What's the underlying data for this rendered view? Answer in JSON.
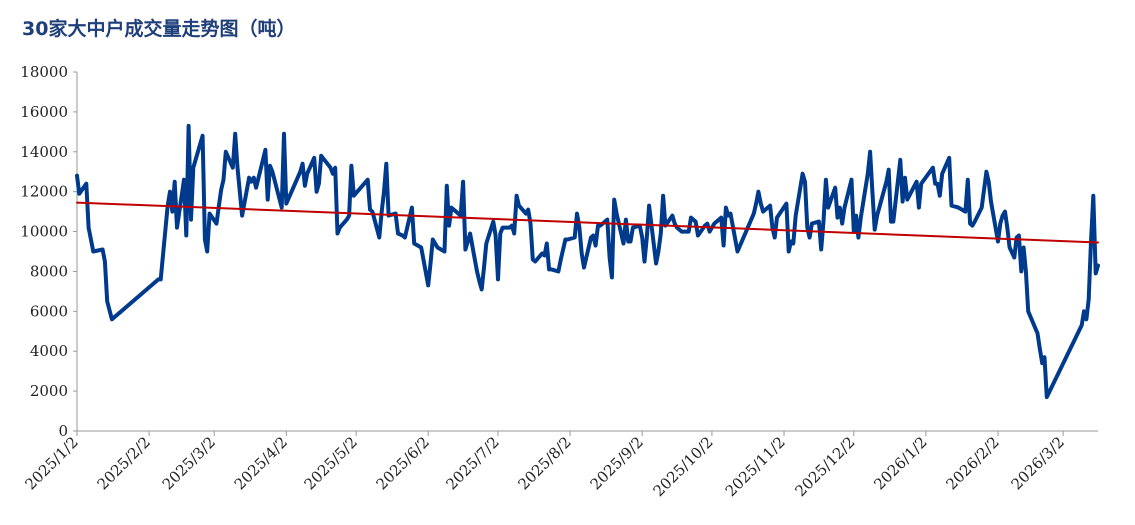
{
  "chart_data": {
    "type": "line",
    "title": "30家大中户成交量走势图（吨）",
    "xlabel": "",
    "ylabel": "",
    "ylim": [
      0,
      18000
    ],
    "yticks": [
      "0",
      "2000",
      "4000",
      "6000",
      "8000",
      "10000",
      "12000",
      "14000",
      "16000",
      "18000"
    ],
    "xticks": [
      "2025/1/2",
      "2025/2/2",
      "2025/3/2",
      "2025/4/2",
      "2025/5/2",
      "2025/6/2",
      "2025/7/2",
      "2025/8/2",
      "2025/9/2",
      "2025/10/2",
      "2025/11/2",
      "2025/12/2",
      "2026/1/2",
      "2026/2/2",
      "2026/3/2"
    ],
    "grid": false,
    "legend": "none",
    "series": [
      {
        "color": "#003a8c",
        "points": [
          [
            "2025-01-02",
            12800
          ],
          [
            "2025-01-03",
            11900
          ],
          [
            "2025-01-06",
            12400
          ],
          [
            "2025-01-07",
            10200
          ],
          [
            "2025-01-09",
            9000
          ],
          [
            "2025-01-13",
            9100
          ],
          [
            "2025-01-14",
            8500
          ],
          [
            "2025-01-15",
            6500
          ],
          [
            "2025-01-17",
            5600
          ],
          [
            "2025-02-06",
            7600
          ],
          [
            "2025-02-07",
            7600
          ],
          [
            "2025-02-10",
            11300
          ],
          [
            "2025-02-11",
            12000
          ],
          [
            "2025-02-12",
            11000
          ],
          [
            "2025-02-13",
            12500
          ],
          [
            "2025-02-14",
            10200
          ],
          [
            "2025-02-17",
            12600
          ],
          [
            "2025-02-18",
            9800
          ],
          [
            "2025-02-19",
            15300
          ],
          [
            "2025-02-20",
            10600
          ],
          [
            "2025-02-21",
            13200
          ],
          [
            "2025-02-25",
            14800
          ],
          [
            "2025-02-26",
            9600
          ],
          [
            "2025-02-27",
            9000
          ],
          [
            "2025-02-28",
            10900
          ],
          [
            "2025-03-03",
            10400
          ],
          [
            "2025-03-04",
            11300
          ],
          [
            "2025-03-05",
            12100
          ],
          [
            "2025-03-06",
            12600
          ],
          [
            "2025-03-07",
            14000
          ],
          [
            "2025-03-10",
            13200
          ],
          [
            "2025-03-11",
            14900
          ],
          [
            "2025-03-12",
            13200
          ],
          [
            "2025-03-14",
            10800
          ],
          [
            "2025-03-17",
            12700
          ],
          [
            "2025-03-18",
            12500
          ],
          [
            "2025-03-19",
            12700
          ],
          [
            "2025-03-20",
            12200
          ],
          [
            "2025-03-24",
            14100
          ],
          [
            "2025-03-25",
            11600
          ],
          [
            "2025-03-26",
            13300
          ],
          [
            "2025-03-27",
            13000
          ],
          [
            "2025-03-31",
            11200
          ],
          [
            "2025-04-01",
            14900
          ],
          [
            "2025-04-02",
            11400
          ],
          [
            "2025-04-08",
            13000
          ],
          [
            "2025-04-09",
            13400
          ],
          [
            "2025-04-10",
            12300
          ],
          [
            "2025-04-11",
            12900
          ],
          [
            "2025-04-14",
            13700
          ],
          [
            "2025-04-15",
            12000
          ],
          [
            "2025-04-16",
            12400
          ],
          [
            "2025-04-17",
            13800
          ],
          [
            "2025-04-21",
            13200
          ],
          [
            "2025-04-22",
            12900
          ],
          [
            "2025-04-23",
            13200
          ],
          [
            "2025-04-24",
            9900
          ],
          [
            "2025-04-25",
            10200
          ],
          [
            "2025-04-28",
            10600
          ],
          [
            "2025-04-29",
            10800
          ],
          [
            "2025-04-30",
            13300
          ],
          [
            "2025-05-01",
            11800
          ],
          [
            "2025-05-07",
            12600
          ],
          [
            "2025-05-08",
            11100
          ],
          [
            "2025-05-09",
            11000
          ],
          [
            "2025-05-12",
            9700
          ],
          [
            "2025-05-13",
            11000
          ],
          [
            "2025-05-14",
            12000
          ],
          [
            "2025-05-15",
            13400
          ],
          [
            "2025-05-16",
            10800
          ],
          [
            "2025-05-19",
            10900
          ],
          [
            "2025-05-20",
            9900
          ],
          [
            "2025-05-22",
            9800
          ],
          [
            "2025-05-23",
            9700
          ],
          [
            "2025-05-26",
            11200
          ],
          [
            "2025-05-27",
            9400
          ],
          [
            "2025-05-30",
            9200
          ],
          [
            "2025-06-02",
            7300
          ],
          [
            "2025-06-03",
            8400
          ],
          [
            "2025-06-04",
            9600
          ],
          [
            "2025-06-06",
            9200
          ],
          [
            "2025-06-09",
            9000
          ],
          [
            "2025-06-10",
            12300
          ],
          [
            "2025-06-11",
            10300
          ],
          [
            "2025-06-12",
            11200
          ],
          [
            "2025-06-16",
            10800
          ],
          [
            "2025-06-17",
            12500
          ],
          [
            "2025-06-18",
            9100
          ],
          [
            "2025-06-20",
            9900
          ],
          [
            "2025-06-23",
            8000
          ],
          [
            "2025-06-24",
            7500
          ],
          [
            "2025-06-25",
            7100
          ],
          [
            "2025-06-26",
            8200
          ],
          [
            "2025-06-27",
            9400
          ],
          [
            "2025-06-30",
            10500
          ],
          [
            "2025-07-01",
            9800
          ],
          [
            "2025-07-02",
            7600
          ],
          [
            "2025-07-03",
            9900
          ],
          [
            "2025-07-04",
            10200
          ],
          [
            "2025-07-07",
            10200
          ],
          [
            "2025-07-08",
            10300
          ],
          [
            "2025-07-09",
            9900
          ],
          [
            "2025-07-10",
            11800
          ],
          [
            "2025-07-11",
            11300
          ],
          [
            "2025-07-14",
            10900
          ],
          [
            "2025-07-15",
            11100
          ],
          [
            "2025-07-16",
            10400
          ],
          [
            "2025-07-17",
            8600
          ],
          [
            "2025-07-18",
            8500
          ],
          [
            "2025-07-21",
            8900
          ],
          [
            "2025-07-22",
            8800
          ],
          [
            "2025-07-23",
            9400
          ],
          [
            "2025-07-24",
            8100
          ],
          [
            "2025-07-25",
            8100
          ],
          [
            "2025-07-28",
            8000
          ],
          [
            "2025-07-29",
            8600
          ],
          [
            "2025-07-31",
            9600
          ],
          [
            "2025-08-01",
            9600
          ],
          [
            "2025-08-04",
            9700
          ],
          [
            "2025-08-05",
            10900
          ],
          [
            "2025-08-06",
            10200
          ],
          [
            "2025-08-07",
            8900
          ],
          [
            "2025-08-08",
            8200
          ],
          [
            "2025-08-11",
            9700
          ],
          [
            "2025-08-12",
            9800
          ],
          [
            "2025-08-13",
            9300
          ],
          [
            "2025-08-14",
            10300
          ],
          [
            "2025-08-15",
            10300
          ],
          [
            "2025-08-18",
            10600
          ],
          [
            "2025-08-19",
            8700
          ],
          [
            "2025-08-20",
            7700
          ],
          [
            "2025-08-21",
            11600
          ],
          [
            "2025-08-22",
            10900
          ],
          [
            "2025-08-25",
            9400
          ],
          [
            "2025-08-26",
            10600
          ],
          [
            "2025-08-27",
            9500
          ],
          [
            "2025-08-28",
            9500
          ],
          [
            "2025-08-29",
            10200
          ],
          [
            "2025-09-01",
            10300
          ],
          [
            "2025-09-02",
            9700
          ],
          [
            "2025-09-03",
            8500
          ],
          [
            "2025-09-04",
            9700
          ],
          [
            "2025-09-05",
            11300
          ],
          [
            "2025-09-08",
            8400
          ],
          [
            "2025-09-09",
            9000
          ],
          [
            "2025-09-10",
            9900
          ],
          [
            "2025-09-11",
            11800
          ],
          [
            "2025-09-12",
            10300
          ],
          [
            "2025-09-15",
            10800
          ],
          [
            "2025-09-16",
            10400
          ],
          [
            "2025-09-17",
            10200
          ],
          [
            "2025-09-18",
            10100
          ],
          [
            "2025-09-19",
            10000
          ],
          [
            "2025-09-22",
            10000
          ],
          [
            "2025-09-23",
            10700
          ],
          [
            "2025-09-25",
            10500
          ],
          [
            "2025-09-26",
            9800
          ],
          [
            "2025-09-29",
            10300
          ],
          [
            "2025-09-30",
            10400
          ],
          [
            "2025-10-01",
            10000
          ],
          [
            "2025-10-03",
            10400
          ],
          [
            "2025-10-06",
            10700
          ],
          [
            "2025-10-07",
            9300
          ],
          [
            "2025-10-08",
            11200
          ],
          [
            "2025-10-09",
            10800
          ],
          [
            "2025-10-10",
            10900
          ],
          [
            "2025-10-13",
            9000
          ],
          [
            "2025-10-20",
            10900
          ],
          [
            "2025-10-21",
            11400
          ],
          [
            "2025-10-22",
            12000
          ],
          [
            "2025-10-23",
            11400
          ],
          [
            "2025-10-24",
            11000
          ],
          [
            "2025-10-27",
            11300
          ],
          [
            "2025-10-28",
            10200
          ],
          [
            "2025-10-29",
            9700
          ],
          [
            "2025-10-30",
            10700
          ],
          [
            "2025-11-03",
            11400
          ],
          [
            "2025-11-04",
            9000
          ],
          [
            "2025-11-05",
            9500
          ],
          [
            "2025-11-06",
            9400
          ],
          [
            "2025-11-07",
            10800
          ],
          [
            "2025-11-10",
            12900
          ],
          [
            "2025-11-11",
            12500
          ],
          [
            "2025-11-12",
            10200
          ],
          [
            "2025-11-13",
            9700
          ],
          [
            "2025-11-14",
            10400
          ],
          [
            "2025-11-17",
            10500
          ],
          [
            "2025-11-18",
            9100
          ],
          [
            "2025-11-19",
            10600
          ],
          [
            "2025-11-20",
            12600
          ],
          [
            "2025-11-21",
            11200
          ],
          [
            "2025-11-24",
            12200
          ],
          [
            "2025-11-25",
            10700
          ],
          [
            "2025-11-26",
            11200
          ],
          [
            "2025-11-27",
            10400
          ],
          [
            "2025-11-28",
            11200
          ],
          [
            "2025-12-01",
            12600
          ],
          [
            "2025-12-02",
            10000
          ],
          [
            "2025-12-03",
            10800
          ],
          [
            "2025-12-04",
            9700
          ],
          [
            "2025-12-05",
            10700
          ],
          [
            "2025-12-08",
            12900
          ],
          [
            "2025-12-09",
            14000
          ],
          [
            "2025-12-10",
            12000
          ],
          [
            "2025-12-11",
            10100
          ],
          [
            "2025-12-12",
            10800
          ],
          [
            "2025-12-16",
            12500
          ],
          [
            "2025-12-17",
            13100
          ],
          [
            "2025-12-18",
            10500
          ],
          [
            "2025-12-19",
            10500
          ],
          [
            "2025-12-22",
            13600
          ],
          [
            "2025-12-23",
            11500
          ],
          [
            "2025-12-24",
            12700
          ],
          [
            "2025-12-25",
            11600
          ],
          [
            "2025-12-29",
            12500
          ],
          [
            "2025-12-30",
            11200
          ],
          [
            "2025-12-31",
            12400
          ],
          [
            "2026-01-05",
            13200
          ],
          [
            "2026-01-06",
            12400
          ],
          [
            "2026-01-07",
            12400
          ],
          [
            "2026-01-08",
            11800
          ],
          [
            "2026-01-09",
            12900
          ],
          [
            "2026-01-12",
            13700
          ],
          [
            "2026-01-13",
            11300
          ],
          [
            "2026-01-16",
            11200
          ],
          [
            "2026-01-19",
            11000
          ],
          [
            "2026-01-20",
            12600
          ],
          [
            "2026-01-21",
            10400
          ],
          [
            "2026-01-22",
            10300
          ],
          [
            "2026-01-23",
            10500
          ],
          [
            "2026-01-26",
            11200
          ],
          [
            "2026-01-28",
            13000
          ],
          [
            "2026-01-29",
            12500
          ],
          [
            "2026-01-30",
            11500
          ],
          [
            "2026-02-02",
            9500
          ],
          [
            "2026-02-03",
            10400
          ],
          [
            "2026-02-04",
            10800
          ],
          [
            "2026-02-05",
            11000
          ],
          [
            "2026-02-06",
            10200
          ],
          [
            "2026-02-07",
            9200
          ],
          [
            "2026-02-09",
            8700
          ],
          [
            "2026-02-10",
            9700
          ],
          [
            "2026-02-11",
            9800
          ],
          [
            "2026-02-12",
            8000
          ],
          [
            "2026-02-13",
            9200
          ],
          [
            "2026-02-14",
            8000
          ],
          [
            "2026-02-15",
            6000
          ],
          [
            "2026-02-19",
            4900
          ],
          [
            "2026-02-20",
            4100
          ],
          [
            "2026-02-21",
            3400
          ],
          [
            "2026-02-22",
            3700
          ],
          [
            "2026-02-23",
            1700
          ],
          [
            "2026-03-10",
            5300
          ],
          [
            "2026-03-11",
            6000
          ],
          [
            "2026-03-12",
            5600
          ],
          [
            "2026-03-13",
            6600
          ],
          [
            "2026-03-14",
            9500
          ],
          [
            "2026-03-15",
            11800
          ],
          [
            "2026-03-16",
            7900
          ],
          [
            "2026-03-17",
            8300
          ]
        ]
      },
      {
        "color": "#c00000",
        "points": [
          [
            "2025-01-02",
            11450
          ],
          [
            "2026-03-17",
            9450
          ]
        ]
      }
    ]
  }
}
